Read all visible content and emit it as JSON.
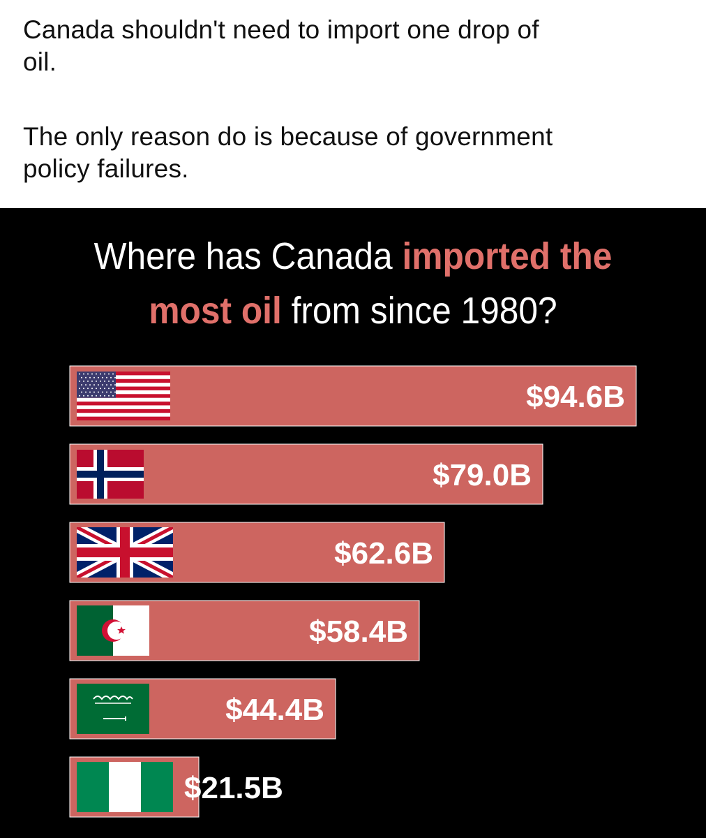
{
  "post": {
    "paragraph_1": "Canada shouldn't need to import one drop of\noil.",
    "paragraph_2": "The only reason do is because of government\npolicy failures."
  },
  "infographic": {
    "title_parts": [
      {
        "text": "Where has Canada ",
        "highlight": false
      },
      {
        "text": "imported the",
        "highlight": true
      },
      {
        "text": " ",
        "highlight": false
      },
      {
        "text": "most oil",
        "highlight": true
      },
      {
        "text": " from since 1980?",
        "highlight": false
      }
    ],
    "colors": {
      "background": "#000000",
      "bar": "#cd6560",
      "bar_border": "#ffffff",
      "highlight": "#e0706a",
      "text": "#ffffff"
    }
  },
  "chart_data": {
    "type": "bar",
    "orientation": "horizontal",
    "categories": [
      "United States",
      "Norway",
      "United Kingdom",
      "Algeria",
      "Saudi Arabia",
      "Nigeria"
    ],
    "category_icons": [
      "us-flag-icon",
      "norway-flag-icon",
      "uk-flag-icon",
      "algeria-flag-icon",
      "saudi-flag-icon",
      "nigeria-flag-icon"
    ],
    "values": [
      94.6,
      79.0,
      62.6,
      58.4,
      44.4,
      21.5
    ],
    "value_labels": [
      "$94.6B",
      "$79.0B",
      "$62.6B",
      "$58.4B",
      "$44.4B",
      "$21.5B"
    ],
    "unit": "$B",
    "title": "Where has Canada imported the most oil from since 1980?",
    "xlabel": "",
    "ylabel": "",
    "xlim": [
      0,
      94.6
    ],
    "grid": false,
    "legend": "none"
  }
}
